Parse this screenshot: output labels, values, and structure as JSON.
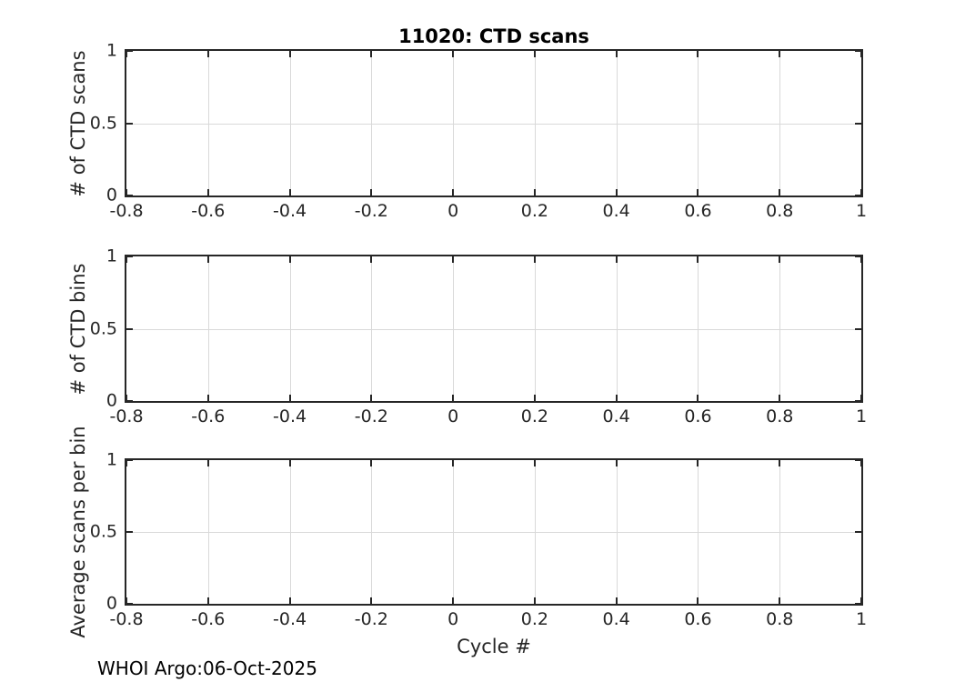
{
  "figure": {
    "title": "11020: CTD scans",
    "xlabel": "Cycle #",
    "footer": "WHOI Argo:06-Oct-2025",
    "colors": {
      "background": "#ffffff",
      "axis_and_text": "#262626",
      "title_text": "#000000",
      "grid": "#d9d9d9"
    }
  },
  "chart_data": [
    {
      "type": "line",
      "title": "11020: CTD scans",
      "ylabel": "# of CTD scans",
      "xlabel": "",
      "xlim": [
        -0.8,
        1
      ],
      "ylim": [
        0,
        1
      ],
      "xticks": [
        -0.8,
        -0.6,
        -0.4,
        -0.2,
        0,
        0.2,
        0.4,
        0.6,
        0.8,
        1
      ],
      "xticklabels": [
        "-0.8",
        "-0.6",
        "-0.4",
        "-0.2",
        "0",
        "0.2",
        "0.4",
        "0.6",
        "0.8",
        "1"
      ],
      "yticks": [
        0,
        0.5,
        1
      ],
      "yticklabels": [
        "0",
        "0.5",
        "1"
      ],
      "grid": true,
      "box": true,
      "series": []
    },
    {
      "type": "line",
      "title": "",
      "ylabel": "# of CTD bins",
      "xlabel": "",
      "xlim": [
        -0.8,
        1
      ],
      "ylim": [
        0,
        1
      ],
      "xticks": [
        -0.8,
        -0.6,
        -0.4,
        -0.2,
        0,
        0.2,
        0.4,
        0.6,
        0.8,
        1
      ],
      "xticklabels": [
        "-0.8",
        "-0.6",
        "-0.4",
        "-0.2",
        "0",
        "0.2",
        "0.4",
        "0.6",
        "0.8",
        "1"
      ],
      "yticks": [
        0,
        0.5,
        1
      ],
      "yticklabels": [
        "0",
        "0.5",
        "1"
      ],
      "grid": true,
      "box": true,
      "series": []
    },
    {
      "type": "line",
      "title": "",
      "ylabel": "Average scans per bin",
      "xlabel": "Cycle #",
      "xlim": [
        -0.8,
        1
      ],
      "ylim": [
        0,
        1
      ],
      "xticks": [
        -0.8,
        -0.6,
        -0.4,
        -0.2,
        0,
        0.2,
        0.4,
        0.6,
        0.8,
        1
      ],
      "xticklabels": [
        "-0.8",
        "-0.6",
        "-0.4",
        "-0.2",
        "0",
        "0.2",
        "0.4",
        "0.6",
        "0.8",
        "1"
      ],
      "yticks": [
        0,
        0.5,
        1
      ],
      "yticklabels": [
        "0",
        "0.5",
        "1"
      ],
      "grid": true,
      "box": true,
      "series": []
    }
  ]
}
